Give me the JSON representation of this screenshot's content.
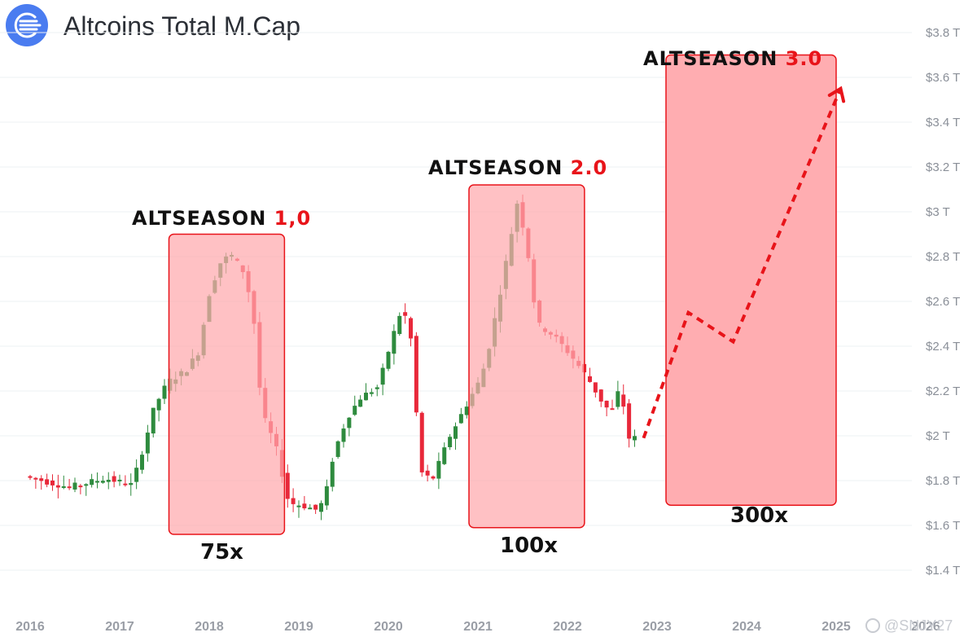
{
  "header": {
    "title": "Altcoins Total M.Cap",
    "logo_color": "#4a7cf0"
  },
  "chart_data": {
    "type": "candlestick",
    "y_unit": "$T",
    "y_ticks": [
      "$3.8 T",
      "$3.6 T",
      "$3.4 T",
      "$3.2 T",
      "$3 T",
      "$2.8 T",
      "$2.6 T",
      "$2.4 T",
      "$2.2 T",
      "$2 T",
      "$1.8 T",
      "$1.6 T",
      "$1.4 T"
    ],
    "x_ticks": [
      "2016",
      "2017",
      "2018",
      "2019",
      "2020",
      "2021",
      "2022",
      "2023",
      "2024",
      "2025",
      "2026"
    ],
    "colors": {
      "up": "#2e8b3e",
      "down": "#e8283a",
      "highlight_fill": "#ffa9ad",
      "highlight_stroke": "#e8141a",
      "projection": "#e8141a"
    },
    "highlights": [
      {
        "title": "ALTSEASON ",
        "number": "1,0",
        "multiplier": "75x"
      },
      {
        "title": "ALTSEASON ",
        "number": "2.0",
        "multiplier": "100x"
      },
      {
        "title": "ALTSEASON ",
        "number": "3.0",
        "multiplier": "300x"
      }
    ],
    "projection_points": [
      [
        2022.85,
        1.99
      ],
      [
        2023.35,
        2.55
      ],
      [
        2023.85,
        2.42
      ],
      [
        2025.05,
        3.55
      ]
    ]
  },
  "watermark": "@SNJY27"
}
